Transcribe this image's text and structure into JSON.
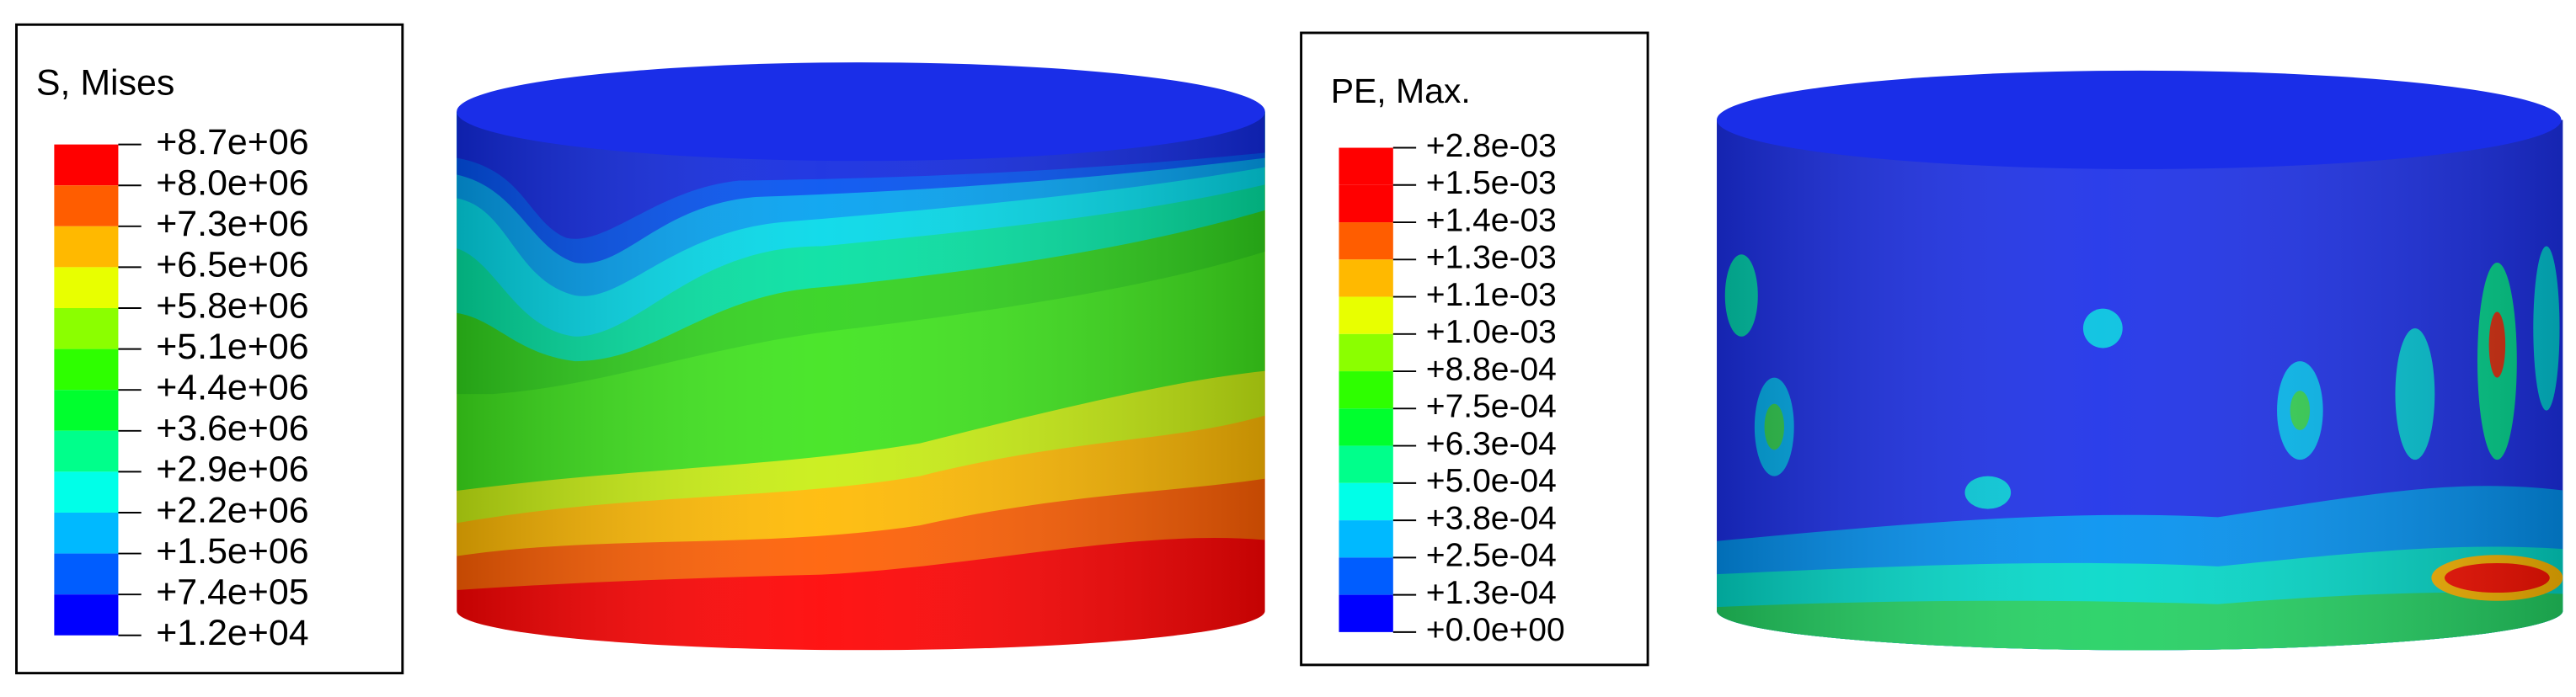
{
  "legends": [
    {
      "title": "S, Mises",
      "labels": [
        "+8.7e+06",
        "+8.0e+06",
        "+7.3e+06",
        "+6.5e+06",
        "+5.8e+06",
        "+5.1e+06",
        "+4.4e+06",
        "+3.6e+06",
        "+2.9e+06",
        "+2.2e+06",
        "+1.5e+06",
        "+7.4e+05",
        "+1.2e+04"
      ],
      "colors": [
        "#ff0000",
        "#ff5d00",
        "#ffb900",
        "#e8ff00",
        "#8bff00",
        "#2eff00",
        "#00ff2e",
        "#00ff8b",
        "#00ffe8",
        "#00b9ff",
        "#005dff",
        "#0000ff"
      ]
    },
    {
      "title": "PE, Max.",
      "labels": [
        "+2.8e-03",
        "+1.5e-03",
        "+1.4e-03",
        "+1.3e-03",
        "+1.1e-03",
        "+1.0e-03",
        "+8.8e-04",
        "+7.5e-04",
        "+6.3e-04",
        "+5.0e-04",
        "+3.8e-04",
        "+2.5e-04",
        "+1.3e-04",
        "+0.0e+00"
      ],
      "colors": [
        "#ff0000",
        "#ff0000",
        "#ff5d00",
        "#ffb900",
        "#e8ff00",
        "#8bff00",
        "#2eff00",
        "#00ff2e",
        "#00ff8b",
        "#00ffe8",
        "#00b9ff",
        "#005dff",
        "#0000ff"
      ]
    }
  ]
}
